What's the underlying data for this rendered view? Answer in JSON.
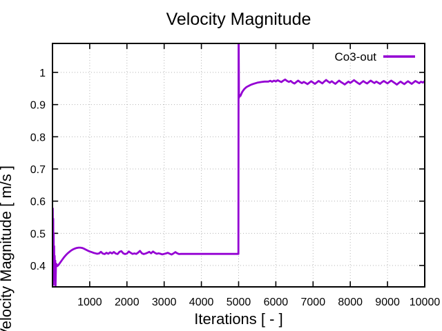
{
  "chart_data": {
    "type": "line",
    "title": "Velocity Magnitude",
    "xlabel": "Iterations [ - ]",
    "ylabel": "Velocity Magnitude [ m/s ]",
    "x_range": [
      0,
      10000
    ],
    "y_range": [
      0.3336,
      1.09
    ],
    "x_ticks": [
      1000,
      2000,
      3000,
      4000,
      5000,
      6000,
      7000,
      8000,
      9000,
      10000
    ],
    "x_tick_labels": [
      "1000",
      "2000",
      "3000",
      "4000",
      "5000",
      "6000",
      "7000",
      "8000",
      "9000",
      "10000"
    ],
    "y_ticks": [
      0.4,
      0.5,
      0.6,
      0.7,
      0.8,
      0.9,
      1.0
    ],
    "y_tick_labels": [
      "0.4",
      "0.5",
      "0.6",
      "0.7",
      "0.8",
      "0.9",
      "1"
    ],
    "grid": true,
    "grid_style": "dotted",
    "legend_position": "top-right-inside",
    "series": [
      {
        "name": "Co3-out",
        "color": "#9400D3",
        "points": [
          [
            0,
            0.435
          ],
          [
            8,
            0.577
          ],
          [
            14,
            0.36
          ],
          [
            20,
            0.545
          ],
          [
            26,
            0.34
          ],
          [
            32,
            0.5
          ],
          [
            38,
            0.355
          ],
          [
            44,
            0.46
          ],
          [
            50,
            0.37
          ],
          [
            58,
            0.43
          ],
          [
            66,
            0.385
          ],
          [
            74,
            0.415
          ],
          [
            82,
            0.335
          ],
          [
            92,
            0.398
          ],
          [
            105,
            0.405
          ],
          [
            125,
            0.398
          ],
          [
            150,
            0.4
          ],
          [
            200,
            0.408
          ],
          [
            250,
            0.416
          ],
          [
            300,
            0.424
          ],
          [
            350,
            0.431
          ],
          [
            400,
            0.437
          ],
          [
            450,
            0.442
          ],
          [
            500,
            0.4465
          ],
          [
            550,
            0.45
          ],
          [
            600,
            0.4525
          ],
          [
            650,
            0.4545
          ],
          [
            700,
            0.4555
          ],
          [
            750,
            0.4555
          ],
          [
            800,
            0.4545
          ],
          [
            850,
            0.452
          ],
          [
            900,
            0.449
          ],
          [
            950,
            0.446
          ],
          [
            1000,
            0.4435
          ],
          [
            1050,
            0.4415
          ],
          [
            1100,
            0.4395
          ],
          [
            1150,
            0.438
          ],
          [
            1200,
            0.4365
          ],
          [
            1250,
            0.4375
          ],
          [
            1300,
            0.4425
          ],
          [
            1350,
            0.437
          ],
          [
            1400,
            0.4355
          ],
          [
            1450,
            0.4395
          ],
          [
            1500,
            0.4365
          ],
          [
            1550,
            0.441
          ],
          [
            1600,
            0.4375
          ],
          [
            1650,
            0.442
          ],
          [
            1700,
            0.437
          ],
          [
            1750,
            0.4355
          ],
          [
            1800,
            0.4425
          ],
          [
            1850,
            0.4445
          ],
          [
            1900,
            0.438
          ],
          [
            1950,
            0.4355
          ],
          [
            2000,
            0.437
          ],
          [
            2050,
            0.4435
          ],
          [
            2100,
            0.4395
          ],
          [
            2150,
            0.436
          ],
          [
            2200,
            0.4375
          ],
          [
            2250,
            0.436
          ],
          [
            2300,
            0.44
          ],
          [
            2350,
            0.4455
          ],
          [
            2400,
            0.438
          ],
          [
            2450,
            0.4355
          ],
          [
            2500,
            0.437
          ],
          [
            2550,
            0.4395
          ],
          [
            2600,
            0.4425
          ],
          [
            2650,
            0.438
          ],
          [
            2700,
            0.4435
          ],
          [
            2750,
            0.4395
          ],
          [
            2800,
            0.4365
          ],
          [
            2850,
            0.438
          ],
          [
            2900,
            0.4365
          ],
          [
            2950,
            0.4345
          ],
          [
            3000,
            0.436
          ],
          [
            3050,
            0.4375
          ],
          [
            3100,
            0.4395
          ],
          [
            3150,
            0.4365
          ],
          [
            3200,
            0.434
          ],
          [
            3250,
            0.4375
          ],
          [
            3300,
            0.4415
          ],
          [
            3350,
            0.438
          ],
          [
            3400,
            0.4355
          ],
          [
            3450,
            0.436
          ],
          [
            3600,
            0.436
          ],
          [
            3800,
            0.436
          ],
          [
            4000,
            0.436
          ],
          [
            4250,
            0.436
          ],
          [
            4500,
            0.436
          ],
          [
            4750,
            0.436
          ],
          [
            4995,
            0.436
          ],
          [
            5000,
            1.15
          ],
          [
            5010,
            0.921
          ],
          [
            5030,
            0.93
          ],
          [
            5050,
            0.927
          ],
          [
            5075,
            0.9335
          ],
          [
            5100,
            0.94
          ],
          [
            5150,
            0.948
          ],
          [
            5200,
            0.9535
          ],
          [
            5250,
            0.957
          ],
          [
            5300,
            0.96
          ],
          [
            5350,
            0.9625
          ],
          [
            5400,
            0.9645
          ],
          [
            5500,
            0.968
          ],
          [
            5600,
            0.97
          ],
          [
            5700,
            0.9715
          ],
          [
            5800,
            0.9715
          ],
          [
            5850,
            0.974
          ],
          [
            5900,
            0.971
          ],
          [
            5950,
            0.9745
          ],
          [
            6000,
            0.972
          ],
          [
            6050,
            0.9755
          ],
          [
            6100,
            0.9725
          ],
          [
            6150,
            0.97
          ],
          [
            6200,
            0.9745
          ],
          [
            6250,
            0.978
          ],
          [
            6300,
            0.9735
          ],
          [
            6350,
            0.9705
          ],
          [
            6400,
            0.9735
          ],
          [
            6450,
            0.9685
          ],
          [
            6500,
            0.9655
          ],
          [
            6550,
            0.97
          ],
          [
            6600,
            0.9745
          ],
          [
            6650,
            0.97
          ],
          [
            6700,
            0.9665
          ],
          [
            6750,
            0.9705
          ],
          [
            6800,
            0.9675
          ],
          [
            6850,
            0.9635
          ],
          [
            6900,
            0.968
          ],
          [
            6950,
            0.9725
          ],
          [
            7000,
            0.9685
          ],
          [
            7050,
            0.9645
          ],
          [
            7100,
            0.969
          ],
          [
            7150,
            0.9735
          ],
          [
            7200,
            0.9695
          ],
          [
            7250,
            0.966
          ],
          [
            7300,
            0.9715
          ],
          [
            7350,
            0.9765
          ],
          [
            7400,
            0.972
          ],
          [
            7450,
            0.968
          ],
          [
            7500,
            0.9725
          ],
          [
            7550,
            0.9685
          ],
          [
            7600,
            0.9645
          ],
          [
            7650,
            0.9695
          ],
          [
            7700,
            0.9745
          ],
          [
            7750,
            0.97
          ],
          [
            7800,
            0.9665
          ],
          [
            7850,
            0.9625
          ],
          [
            7900,
            0.967
          ],
          [
            7950,
            0.9715
          ],
          [
            8000,
            0.9675
          ],
          [
            8050,
            0.9715
          ],
          [
            8100,
            0.976
          ],
          [
            8150,
            0.9715
          ],
          [
            8200,
            0.9675
          ],
          [
            8250,
            0.9635
          ],
          [
            8300,
            0.9685
          ],
          [
            8350,
            0.973
          ],
          [
            8400,
            0.969
          ],
          [
            8450,
            0.9655
          ],
          [
            8500,
            0.97
          ],
          [
            8550,
            0.9745
          ],
          [
            8600,
            0.9705
          ],
          [
            8650,
            0.967
          ],
          [
            8700,
            0.9715
          ],
          [
            8750,
            0.968
          ],
          [
            8800,
            0.9645
          ],
          [
            8850,
            0.9695
          ],
          [
            8900,
            0.9735
          ],
          [
            8950,
            0.9695
          ],
          [
            9000,
            0.966
          ],
          [
            9050,
            0.9705
          ],
          [
            9100,
            0.9745
          ],
          [
            9150,
            0.9705
          ],
          [
            9200,
            0.9665
          ],
          [
            9250,
            0.962
          ],
          [
            9300,
            0.967
          ],
          [
            9350,
            0.9715
          ],
          [
            9400,
            0.9675
          ],
          [
            9450,
            0.9635
          ],
          [
            9500,
            0.968
          ],
          [
            9550,
            0.9725
          ],
          [
            9600,
            0.9685
          ],
          [
            9650,
            0.9645
          ],
          [
            9700,
            0.969
          ],
          [
            9750,
            0.9735
          ],
          [
            9800,
            0.97
          ],
          [
            9850,
            0.9665
          ],
          [
            9900,
            0.971
          ],
          [
            9950,
            0.9685
          ],
          [
            10000,
            0.9725
          ]
        ]
      }
    ],
    "colors": {
      "series": "#9400D3",
      "frame": "#000000",
      "grid": "#b3b3b3",
      "text": "#000000",
      "background": "#ffffff"
    }
  }
}
